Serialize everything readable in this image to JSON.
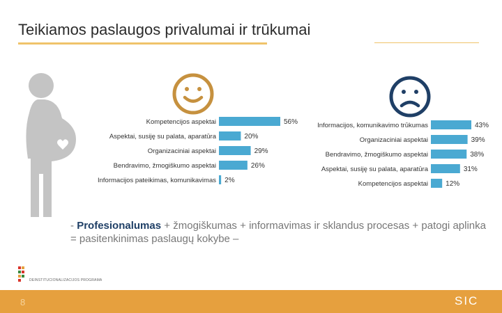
{
  "slide": {
    "title": "Teikiamos paslaugos privalumai ir trūkumai",
    "page_number": "8",
    "brand": "SIC",
    "logo_text": "DEINSTITUCIONALIZACIJOS PROGRAMA"
  },
  "summary": {
    "dash": "- ",
    "bold": "Profesionalumas",
    "rest": " + žmogiškumas + informavimas ir sklandus procesas + patogi aplinka = pasitenkinimas paslaugų kokybe –"
  },
  "colors": {
    "bar": "#4aa9d2",
    "accent": "#e6a03e",
    "smiley": "#c6913f",
    "frowny": "#1f3f66",
    "icon": "#c4c4c4"
  },
  "chart_data": [
    {
      "type": "bar",
      "orientation": "horizontal",
      "title": "Privalumai",
      "icon": "smiley-face",
      "categories": [
        "Kompetencijos aspektai",
        "Aspektai, susiję su palata, aparatūra",
        "Organizaciniai aspektai",
        "Bendravimo, žmogiškumo aspektai",
        "Informacijos pateikimas, komunikavimas"
      ],
      "values": [
        56,
        20,
        29,
        26,
        2
      ],
      "labels": [
        "56%",
        "20%",
        "29%",
        "26%",
        "2%"
      ],
      "xlim": [
        0,
        56
      ]
    },
    {
      "type": "bar",
      "orientation": "horizontal",
      "title": "Trūkumai",
      "icon": "sad-face",
      "categories": [
        "Informacijos, komunikavimo trūkumas",
        "Organizaciniai aspektai",
        "Bendravimo, žmogiškumo aspektai",
        "Aspektai, susiję su palata, aparatūra",
        "Kompetencijos aspektai"
      ],
      "values": [
        43,
        39,
        38,
        31,
        12
      ],
      "labels": [
        "43%",
        "39%",
        "38%",
        "31%",
        "12%"
      ],
      "xlim": [
        0,
        43
      ]
    }
  ]
}
